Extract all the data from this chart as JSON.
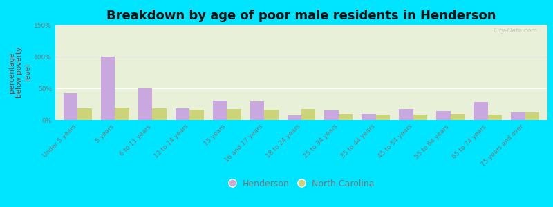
{
  "title": "Breakdown by age of poor male residents in Henderson",
  "ylabel": "percentage\nbelow poverty\nlevel",
  "categories": [
    "Under 5 years",
    "5 years",
    "6 to 11 years",
    "12 to 14 years",
    "15 years",
    "16 and 17 years",
    "18 to 24 years",
    "25 to 34 years",
    "35 to 44 years",
    "45 to 54 years",
    "55 to 64 years",
    "65 to 74 years",
    "75 years and over"
  ],
  "henderson": [
    42,
    100,
    50,
    18,
    30,
    29,
    8,
    15,
    10,
    17,
    14,
    28,
    12
  ],
  "north_carolina": [
    18,
    20,
    18,
    16,
    17,
    16,
    17,
    10,
    9,
    9,
    10,
    9,
    12
  ],
  "henderson_color": "#c9a8e0",
  "nc_color": "#ccd47a",
  "outer_bg": "#00e5ff",
  "plot_bg_top": "#e8f0d8",
  "plot_bg_bottom": "#f5faf0",
  "ylim": [
    0,
    150
  ],
  "yticks": [
    0,
    50,
    100,
    150
  ],
  "ytick_labels": [
    "0%",
    "50%",
    "100%",
    "150%"
  ],
  "title_fontsize": 13,
  "axis_label_fontsize": 7.5,
  "tick_fontsize": 6.5,
  "legend_fontsize": 9,
  "bar_width": 0.38,
  "watermark": "City-Data.com",
  "tick_color": "#777777",
  "ylabel_color": "#8b3a3a"
}
